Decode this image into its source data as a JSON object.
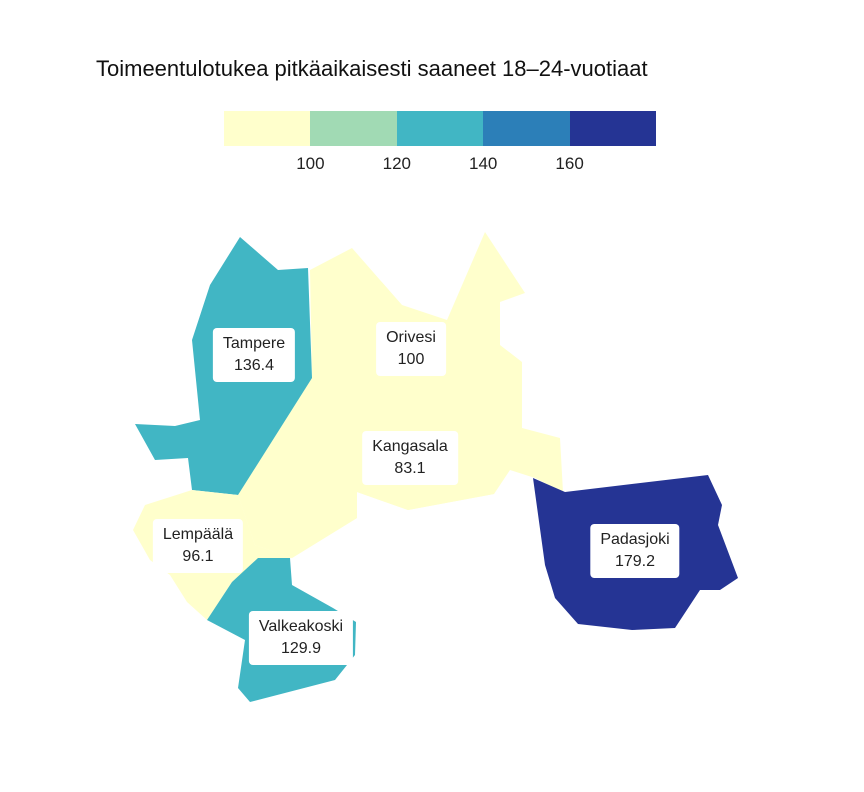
{
  "title": "Toimeentulotukea pitkäaikaisesti saaneet 18–24-vuotiaat",
  "legend": {
    "colors": [
      "#ffffcc",
      "#a1dab4",
      "#41b6c4",
      "#2c7fb8",
      "#253494"
    ],
    "breaks": [
      "100",
      "120",
      "140",
      "160"
    ]
  },
  "municipalities": [
    {
      "key": "tampere",
      "name": "Tampere",
      "value": "136.4",
      "color": "#41b6c4"
    },
    {
      "key": "orivesi",
      "name": "Orivesi",
      "value": "100",
      "color": "#ffffcc"
    },
    {
      "key": "kangasala",
      "name": "Kangasala",
      "value": "83.1",
      "color": "#ffffcc"
    },
    {
      "key": "lempaala",
      "name": "Lempäälä",
      "value": "96.1",
      "color": "#ffffcc"
    },
    {
      "key": "valkeakoski",
      "name": "Valkeakoski",
      "value": "129.9",
      "color": "#41b6c4"
    },
    {
      "key": "padasjoki",
      "name": "Padasjoki",
      "value": "179.2",
      "color": "#253494"
    }
  ]
}
